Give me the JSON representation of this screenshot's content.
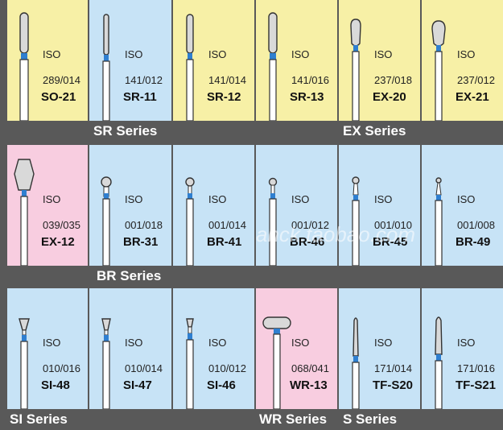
{
  "colors": {
    "yellow": "#f7f0a6",
    "blue": "#c7e3f6",
    "pink": "#f8cde0",
    "band": "#595959",
    "neck": "#2f7fd0"
  },
  "rows": [
    {
      "cells": [
        {
          "iso": "ISO",
          "code": "289/014",
          "model": "SO-21",
          "bg": "yellow",
          "shape": "long-cylinder"
        },
        {
          "iso": "ISO",
          "code": "141/012",
          "model": "SR-11",
          "bg": "blue",
          "shape": "thin-round"
        },
        {
          "iso": "ISO",
          "code": "141/014",
          "model": "SR-12",
          "bg": "yellow",
          "shape": "medium-round"
        },
        {
          "iso": "ISO",
          "code": "141/016",
          "model": "SR-13",
          "bg": "yellow",
          "shape": "thick-round"
        },
        {
          "iso": "ISO",
          "code": "237/018",
          "model": "EX-20",
          "bg": "yellow",
          "shape": "pear"
        },
        {
          "iso": "ISO",
          "code": "237/012",
          "model": "EX-21",
          "bg": "yellow",
          "shape": "pear-wide"
        }
      ],
      "series": [
        {
          "label": "SR Series"
        },
        {
          "label": "EX Series"
        }
      ]
    },
    {
      "cells": [
        {
          "iso": "ISO",
          "code": "039/035",
          "model": "EX-12",
          "bg": "pink",
          "shape": "diamond"
        },
        {
          "iso": "ISO",
          "code": "001/018",
          "model": "BR-31",
          "bg": "blue",
          "shape": "ball-large"
        },
        {
          "iso": "ISO",
          "code": "001/014",
          "model": "BR-41",
          "bg": "blue",
          "shape": "ball-medium"
        },
        {
          "iso": "ISO",
          "code": "001/012",
          "model": "BR-46",
          "bg": "blue",
          "shape": "ball-small"
        },
        {
          "iso": "ISO",
          "code": "001/010",
          "model": "BR-45",
          "bg": "blue",
          "shape": "ball-tiny"
        },
        {
          "iso": "ISO",
          "code": "001/008",
          "model": "BR-49",
          "bg": "blue",
          "shape": "ball-micro"
        }
      ],
      "series": [
        {
          "label": "BR Series"
        }
      ]
    },
    {
      "cells": [
        {
          "iso": "ISO",
          "code": "010/016",
          "model": "SI-48",
          "bg": "blue",
          "shape": "cone-wide"
        },
        {
          "iso": "ISO",
          "code": "010/014",
          "model": "SI-47",
          "bg": "blue",
          "shape": "cone-medium"
        },
        {
          "iso": "ISO",
          "code": "010/012",
          "model": "SI-46",
          "bg": "blue",
          "shape": "cone-small"
        },
        {
          "iso": "ISO",
          "code": "068/041",
          "model": "WR-13",
          "bg": "pink",
          "shape": "wheel"
        },
        {
          "iso": "ISO",
          "code": "171/014",
          "model": "TF-S20",
          "bg": "blue",
          "shape": "taper"
        },
        {
          "iso": "ISO",
          "code": "171/016",
          "model": "TF-S21",
          "bg": "blue",
          "shape": "taper-thick"
        }
      ],
      "series": [
        {
          "label": "SI Series"
        },
        {
          "label": "WR Series"
        },
        {
          "label": "S Series"
        }
      ]
    }
  ],
  "watermark": "ahck.taobao.com"
}
